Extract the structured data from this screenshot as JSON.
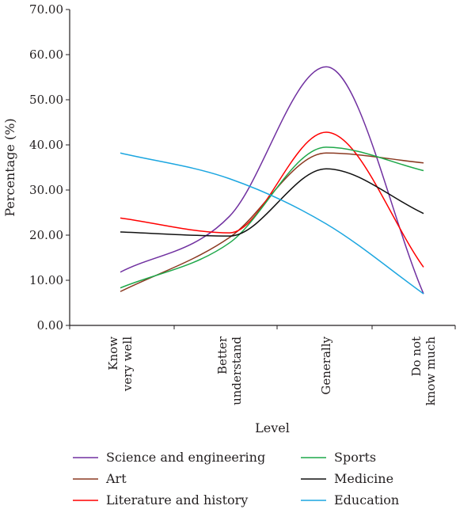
{
  "chart_data": {
    "type": "line",
    "title": "",
    "xlabel": "Level",
    "ylabel": "Percentage (%)",
    "ylim": [
      0,
      70
    ],
    "yticks": [
      "0.00",
      "10.00",
      "20.00",
      "30.00",
      "40.00",
      "50.00",
      "60.00",
      "70.00"
    ],
    "categories": [
      [
        "Know",
        "very well"
      ],
      [
        "Better",
        "understand"
      ],
      [
        "Generally"
      ],
      [
        "Do not",
        "know much"
      ]
    ],
    "smooth": true,
    "grid": false,
    "legend_position": "bottom",
    "series": [
      {
        "name": "Science and engineering",
        "color": "#7030a0",
        "values": [
          11.8,
          24.2,
          57.3,
          7.0
        ]
      },
      {
        "name": "Art",
        "color": "#8b3a22",
        "values": [
          7.5,
          19.5,
          38.2,
          36.0
        ]
      },
      {
        "name": "Literature and history",
        "color": "#ff0000",
        "values": [
          23.8,
          20.5,
          42.8,
          12.9
        ]
      },
      {
        "name": "Sports",
        "color": "#1fa84a",
        "values": [
          8.3,
          18.3,
          39.5,
          34.3
        ]
      },
      {
        "name": "Medicine",
        "color": "#111111",
        "values": [
          20.7,
          19.8,
          34.7,
          24.8
        ]
      },
      {
        "name": "Education",
        "color": "#1ca6e0",
        "values": [
          38.2,
          32.5,
          22.5,
          7.0
        ]
      }
    ]
  }
}
